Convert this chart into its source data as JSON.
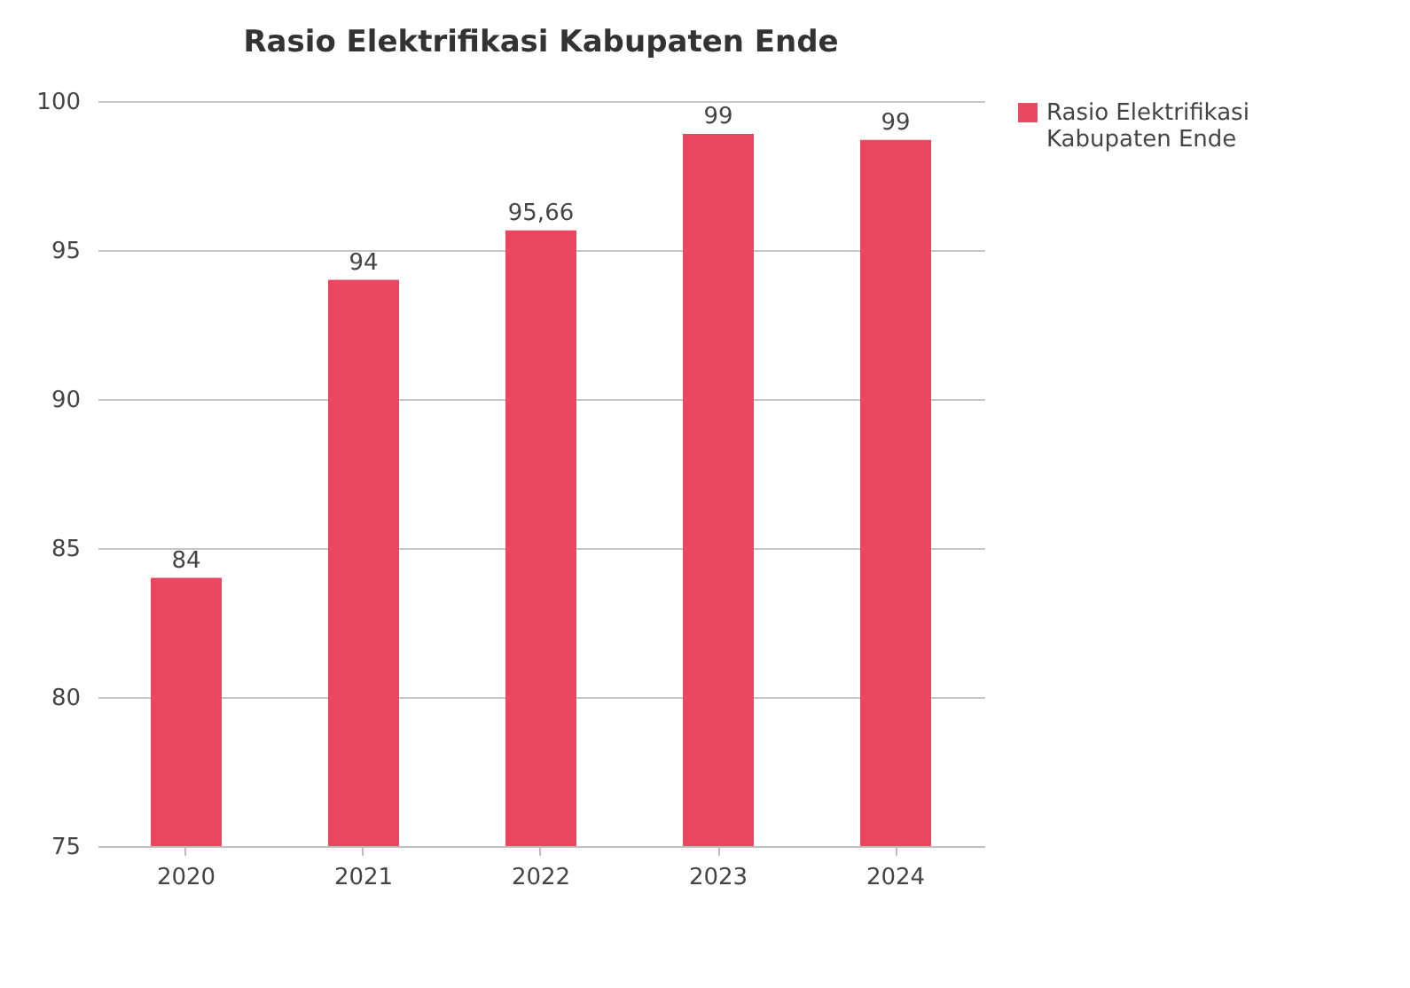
{
  "chart_data": {
    "type": "bar",
    "title": "Rasio Elektrifikasi Kabupaten Ende",
    "categories": [
      "2020",
      "2021",
      "2022",
      "2023",
      "2024"
    ],
    "series": [
      {
        "name": "Rasio Elektrifikasi Kabupaten Ende",
        "color": "#e8475f",
        "values": [
          84,
          94,
          95.66,
          98.9,
          98.7
        ]
      }
    ],
    "value_labels": [
      "84",
      "94",
      "95,66",
      "99",
      "99"
    ],
    "ylim": [
      75,
      100
    ],
    "yticks": [
      75,
      80,
      85,
      90,
      95,
      100
    ],
    "grid": "y",
    "legend": "right"
  }
}
